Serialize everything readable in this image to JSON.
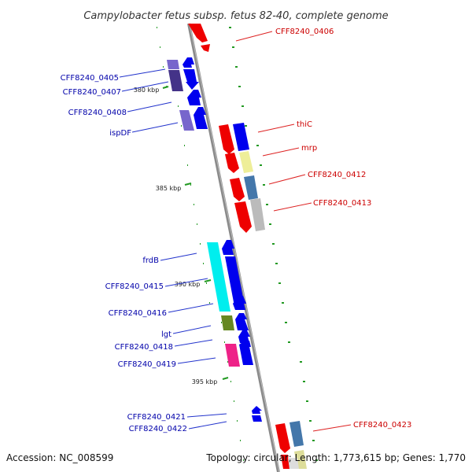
{
  "title": "Campylobacter fetus subsp. fetus 82-40, complete genome",
  "accession": "Accession: NC_008599",
  "topology": "Topology: circular; Length: 1,773,615 bp; Genes: 1,770",
  "colors": {
    "forward_gene": "#0000ee",
    "reverse_gene": "#ee0000",
    "forward_label": "#0000aa",
    "reverse_label": "#cc0000",
    "backbone": "#888888",
    "gc_dots": "#229922"
  },
  "ticks": [
    {
      "label": "380 kbp"
    },
    {
      "label": "385 kbp"
    },
    {
      "label": "390 kbp"
    },
    {
      "label": "395 kbp"
    }
  ],
  "left_labels": [
    {
      "text": "CFF8240_0405"
    },
    {
      "text": "CFF8240_0407"
    },
    {
      "text": "CFF8240_0408"
    },
    {
      "text": "ispDF"
    },
    {
      "text": "frdB"
    },
    {
      "text": "CFF8240_0415"
    },
    {
      "text": "CFF8240_0416"
    },
    {
      "text": "lgt"
    },
    {
      "text": "CFF8240_0418"
    },
    {
      "text": "CFF8240_0419"
    },
    {
      "text": "CFF8240_0421"
    },
    {
      "text": "CFF8240_0422"
    }
  ],
  "right_labels": [
    {
      "text": "CFF8240_0406"
    },
    {
      "text": "thiC"
    },
    {
      "text": "mrp"
    },
    {
      "text": "CFF8240_0412"
    },
    {
      "text": "CFF8240_0413"
    },
    {
      "text": "CFF8240_0423"
    }
  ]
}
